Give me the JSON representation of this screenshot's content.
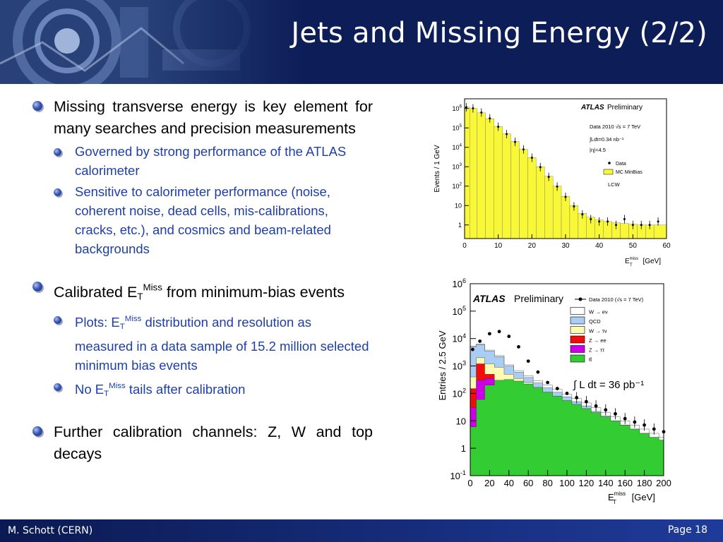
{
  "slide": {
    "title": "Jets and Missing Energy (2/2)",
    "footer_author": "M. Schott (CERN)",
    "footer_page": "Page 18"
  },
  "content": {
    "b1": "Missing transverse energy is key element for many searches and precision measurements",
    "b1_sub1": "Governed by strong performance of the ATLAS calorimeter",
    "b1_sub2": "Sensitive to calorimeter performance (noise, coherent noise, dead cells, mis-calibrations, cracks, etc.), and cosmics and beam-related backgrounds",
    "b2_pre": "Calibrated E",
    "b2_sub": "T",
    "b2_sup": "Miss",
    "b2_post": " from minimum-bias events",
    "b2_sub1_pre": "Plots: E",
    "b2_sub1_sub": "T",
    "b2_sub1_sup": "Miss",
    "b2_sub1_post": " distribution and resolution as measured in a data sample of 15.2 million selected minimum bias events",
    "b2_sub2_pre": "No E",
    "b2_sub2_sub": "T",
    "b2_sub2_sup": "Miss",
    "b2_sub2_post": " tails after calibration",
    "b3": "Further calibration channels: Z, W and top decays"
  },
  "chart_data": [
    {
      "type": "bar",
      "ylabel": "Events / 1 GeV",
      "xlabel_main": "E",
      "xlabel_sup": "miss",
      "xlabel_sub": "T",
      "xlabel_unit": "[GeV]",
      "xlim": [
        0,
        60
      ],
      "ylim_log10": [
        -0.7,
        6.5
      ],
      "x_ticks": [
        "0",
        "10",
        "20",
        "30",
        "40",
        "50",
        "60"
      ],
      "y_ticks": [
        "1",
        "10",
        "10^2",
        "10^3",
        "10^4",
        "10^5",
        "10^6"
      ],
      "brand": "ATLAS",
      "brand_suffix": "Preliminary",
      "info_lines": [
        "Data 2010  √s = 7 TeV",
        "∫Ldt=0.34 nb⁻¹",
        "|η|<4.5"
      ],
      "legend": [
        "Data",
        "MC MinBias"
      ],
      "tag": "LCW",
      "mc_color": "#f8f838",
      "x": [
        0.5,
        2.5,
        5,
        7.5,
        10,
        12.5,
        15,
        17.5,
        20,
        22.5,
        25,
        27.5,
        30,
        32.5,
        35,
        37.5,
        40,
        42.5,
        45,
        47.5,
        50,
        52.5,
        55,
        57.5
      ],
      "mc": [
        1200000,
        1000000,
        600000,
        300000,
        120000,
        50000,
        20000,
        8000,
        3000,
        1000,
        320,
        100,
        30,
        10,
        4,
        2.5,
        1.8,
        1.5,
        1.3,
        1.2,
        1.1,
        1.0,
        1.0,
        1.0
      ],
      "data": [
        1150000,
        1020000,
        620000,
        310000,
        115000,
        48000,
        19000,
        7800,
        2900,
        950,
        300,
        95,
        28,
        9,
        3.5,
        2,
        1.5,
        1.5,
        1,
        2,
        1,
        1,
        1,
        1.5
      ]
    },
    {
      "type": "area",
      "ylabel": "Entries / 2.5 GeV",
      "xlabel_main": "E",
      "xlabel_sup": "miss",
      "xlabel_sub": "T",
      "xlabel_unit": "[GeV]",
      "xlim": [
        0,
        200
      ],
      "ylim_log10": [
        -1,
        6
      ],
      "x_ticks": [
        "0",
        "20",
        "40",
        "60",
        "80",
        "100",
        "120",
        "140",
        "160",
        "180",
        "200"
      ],
      "y_ticks": [
        "10^-1",
        "1",
        "10",
        "10^2",
        "10^3",
        "10^4",
        "10^5",
        "10^6"
      ],
      "brand": "ATLAS",
      "brand_suffix": "Preliminary",
      "lumi": "∫ L dt = 36 pb⁻¹",
      "legend": [
        "Data 2010 (√s = 7 TeV)",
        "W → eν",
        "QCD",
        "W → τν",
        "Z → ee",
        "Z → ττ",
        "tt̄"
      ],
      "colors": [
        "#ffffff",
        "#a9cdf3",
        "#fbfbb4",
        "#f20d0d",
        "#cc00e6",
        "#33cc33"
      ],
      "x": [
        2.5,
        10,
        20,
        30,
        40,
        50,
        60,
        70,
        80,
        90,
        100,
        110,
        120,
        130,
        140,
        150,
        160,
        170,
        180,
        190,
        200
      ],
      "ttbar": [
        6,
        60,
        200,
        300,
        320,
        280,
        220,
        160,
        110,
        80,
        55,
        40,
        28,
        20,
        14,
        10,
        7,
        5,
        3.5,
        2.5,
        2
      ],
      "z_tautau": [
        30,
        300,
        350,
        250,
        180,
        120,
        80,
        50,
        30,
        20,
        12,
        7,
        5,
        3,
        2,
        1.5,
        1,
        0.8,
        0.6,
        0.5,
        0.4
      ],
      "z_ee": [
        150,
        1200,
        500,
        280,
        180,
        120,
        80,
        50,
        30,
        20,
        12,
        7,
        5,
        3,
        2,
        1.5,
        1,
        0.8,
        0.6,
        0.5,
        0.4
      ],
      "w_taunu": [
        400,
        2000,
        1200,
        900,
        500,
        350,
        250,
        170,
        110,
        75,
        50,
        35,
        25,
        17,
        12,
        8,
        6,
        4,
        3,
        2,
        1.5
      ],
      "qcd": [
        5000,
        6000,
        3500,
        2200,
        1000,
        600,
        380,
        240,
        160,
        110,
        75,
        50,
        35,
        22,
        15,
        10,
        7,
        5,
        3.5,
        2.5,
        1.8
      ],
      "w_enu": [
        5200,
        6300,
        3800,
        2400,
        1100,
        680,
        440,
        290,
        200,
        140,
        95,
        65,
        45,
        30,
        20,
        14,
        10,
        7,
        5,
        3.5,
        2.5
      ],
      "data": [
        4000,
        8000,
        15000,
        18000,
        12000,
        5000,
        1500,
        600,
        250,
        150,
        100,
        70,
        50,
        35,
        25,
        18,
        12,
        9,
        7,
        5,
        4
      ]
    }
  ]
}
